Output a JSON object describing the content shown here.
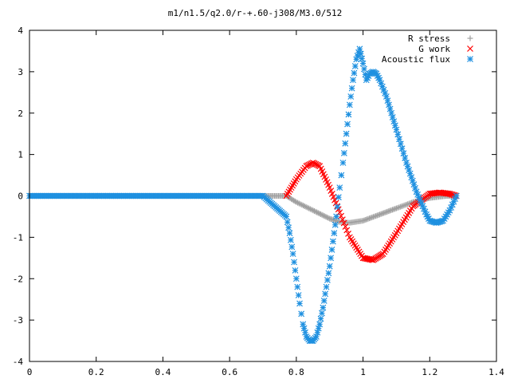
{
  "chart_data": {
    "type": "scatter",
    "title": "m1/n1.5/q2.0/r-+.60-j308/M3.0/512",
    "xlabel": "",
    "ylabel": "",
    "xlim": [
      0,
      1.4
    ],
    "ylim": [
      -4,
      4
    ],
    "grid": false,
    "legend_position": "top-right",
    "xticks": [
      0,
      0.2,
      0.4,
      0.6,
      0.8,
      1,
      1.2,
      1.4
    ],
    "yticks": [
      -4,
      -3,
      -2,
      -1,
      0,
      1,
      2,
      3,
      4
    ],
    "series": [
      {
        "name": "R stress",
        "marker": "plus",
        "color": "#a0a0a0",
        "x": [
          0.0,
          0.1,
          0.2,
          0.3,
          0.4,
          0.5,
          0.6,
          0.7,
          0.77,
          0.8,
          0.85,
          0.9,
          0.93,
          0.96,
          1.0,
          1.05,
          1.1,
          1.15,
          1.2,
          1.25,
          1.28
        ],
        "y": [
          0,
          0,
          0,
          0,
          0,
          0,
          0,
          0,
          0,
          -0.15,
          -0.35,
          -0.55,
          -0.63,
          -0.65,
          -0.6,
          -0.45,
          -0.3,
          -0.15,
          -0.05,
          0,
          0
        ]
      },
      {
        "name": "G work",
        "marker": "cross",
        "color": "#ff0000",
        "x": [
          0.77,
          0.8,
          0.83,
          0.85,
          0.87,
          0.9,
          0.93,
          0.96,
          1.0,
          1.03,
          1.06,
          1.1,
          1.15,
          1.2,
          1.23,
          1.26,
          1.28
        ],
        "y": [
          0,
          0.4,
          0.72,
          0.8,
          0.72,
          0.2,
          -0.4,
          -1.0,
          -1.5,
          -1.55,
          -1.4,
          -0.9,
          -0.25,
          0.05,
          0.08,
          0.05,
          0
        ]
      },
      {
        "name": "Acoustic flux",
        "marker": "asterisk",
        "color": "#1e90e0",
        "x": [
          0.0,
          0.1,
          0.2,
          0.3,
          0.4,
          0.5,
          0.6,
          0.7,
          0.77,
          0.78,
          0.79,
          0.8,
          0.81,
          0.82,
          0.83,
          0.84,
          0.85,
          0.86,
          0.87,
          0.88,
          0.89,
          0.9,
          0.91,
          0.92,
          0.93,
          0.94,
          0.95,
          0.96,
          0.97,
          0.98,
          0.99,
          1.0,
          1.01,
          1.02,
          1.03,
          1.04,
          1.05,
          1.07,
          1.1,
          1.13,
          1.16,
          1.19,
          1.2,
          1.22,
          1.24,
          1.26,
          1.28
        ],
        "y": [
          0,
          0,
          0,
          0,
          0,
          0,
          0,
          0,
          -0.5,
          -0.9,
          -1.4,
          -2.0,
          -2.6,
          -3.1,
          -3.4,
          -3.5,
          -3.5,
          -3.4,
          -3.1,
          -2.7,
          -2.2,
          -1.7,
          -1.1,
          -0.5,
          0.2,
          0.8,
          1.5,
          2.2,
          2.8,
          3.3,
          3.55,
          3.2,
          2.8,
          2.95,
          3.0,
          2.95,
          2.8,
          2.4,
          1.6,
          0.8,
          0.1,
          -0.45,
          -0.6,
          -0.65,
          -0.6,
          -0.35,
          0
        ]
      }
    ]
  }
}
